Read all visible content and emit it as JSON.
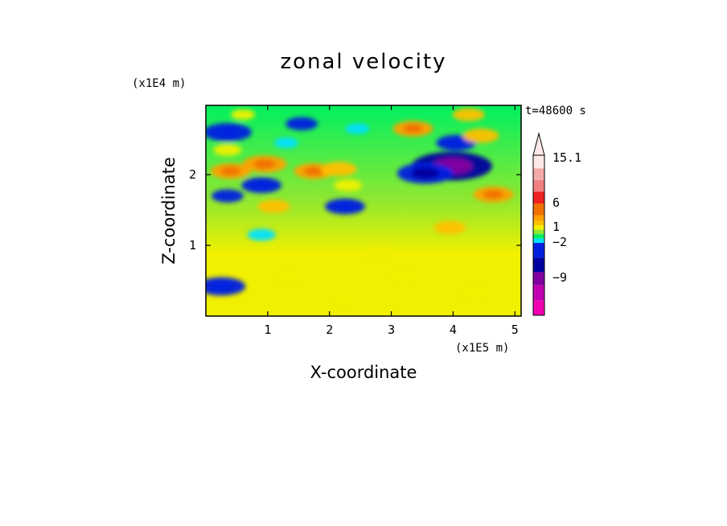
{
  "chart_data": {
    "type": "heatmap",
    "title": "zonal velocity",
    "xlabel": "X-coordinate",
    "ylabel": "Z-coordinate",
    "x_unit": "(x1E5 m)",
    "y_unit": "(x1E4 m)",
    "time_label": "t=48600 s",
    "xlim": [
      0.0,
      5.1
    ],
    "ylim": [
      0.0,
      2.98
    ],
    "x_ticks": [
      1,
      2,
      3,
      4,
      5
    ],
    "y_ticks": [
      1,
      2
    ],
    "x_tick_labels": [
      "1",
      "2",
      "3",
      "4",
      "5"
    ],
    "y_tick_labels": [
      "1",
      "2"
    ],
    "colorbar": {
      "labels": [
        "15.1",
        "6",
        "1",
        "−2",
        "−9"
      ],
      "label_values": [
        15.1,
        6,
        1,
        -2,
        -9
      ],
      "colors_top_to_bottom": [
        "#ffe8e8",
        "#f4aaaa",
        "#f08080",
        "#ee2020",
        "#f07000",
        "#ffa000",
        "#ffc000",
        "#f0f000",
        "#90e830",
        "#00f060",
        "#00e0ff",
        "#0020e0",
        "#0000a0",
        "#8000a0",
        "#c000b0",
        "#f000b0"
      ],
      "extend_max_arrow": true
    },
    "features": [
      {
        "x": 3.98,
        "z": 2.12,
        "value": -8
      },
      {
        "x": 3.55,
        "z": 2.02,
        "value": -5
      },
      {
        "x": 0.35,
        "z": 2.6,
        "value": -4
      },
      {
        "x": 0.25,
        "z": 0.42,
        "value": -4
      },
      {
        "x": 4.05,
        "z": 2.45,
        "value": -3
      },
      {
        "x": 2.25,
        "z": 1.55,
        "value": -3
      },
      {
        "x": 0.9,
        "z": 1.85,
        "value": -3
      },
      {
        "x": 1.55,
        "z": 2.72,
        "value": -2
      },
      {
        "x": 0.35,
        "z": 1.7,
        "value": -2
      },
      {
        "x": 0.9,
        "z": 1.15,
        "value": -1.5
      },
      {
        "x": 1.3,
        "z": 2.45,
        "value": -1
      },
      {
        "x": 2.45,
        "z": 2.65,
        "value": -1
      },
      {
        "x": 0.4,
        "z": 2.05,
        "value": 3
      },
      {
        "x": 0.95,
        "z": 2.15,
        "value": 3.5
      },
      {
        "x": 1.75,
        "z": 2.05,
        "value": 3
      },
      {
        "x": 2.15,
        "z": 2.08,
        "value": 2.5
      },
      {
        "x": 3.35,
        "z": 2.65,
        "value": 3
      },
      {
        "x": 4.45,
        "z": 2.55,
        "value": 2.5
      },
      {
        "x": 4.65,
        "z": 1.72,
        "value": 3
      },
      {
        "x": 3.95,
        "z": 1.25,
        "value": 2
      },
      {
        "x": 1.1,
        "z": 1.55,
        "value": 2
      },
      {
        "x": 0.35,
        "z": 2.35,
        "value": 1.5
      },
      {
        "x": 2.3,
        "z": 1.85,
        "value": 1.5
      },
      {
        "x": 2.8,
        "z": 0.9,
        "value": 1
      },
      {
        "x": 3.2,
        "z": 0.55,
        "value": 0.6
      },
      {
        "x": 1.35,
        "z": 0.55,
        "value": 0.5
      },
      {
        "x": 4.35,
        "z": 0.35,
        "value": 1
      },
      {
        "x": 2.2,
        "z": 0.25,
        "value": 0.5
      },
      {
        "x": 4.25,
        "z": 2.85,
        "value": 2
      },
      {
        "x": 0.6,
        "z": 2.85,
        "value": 1
      }
    ]
  }
}
